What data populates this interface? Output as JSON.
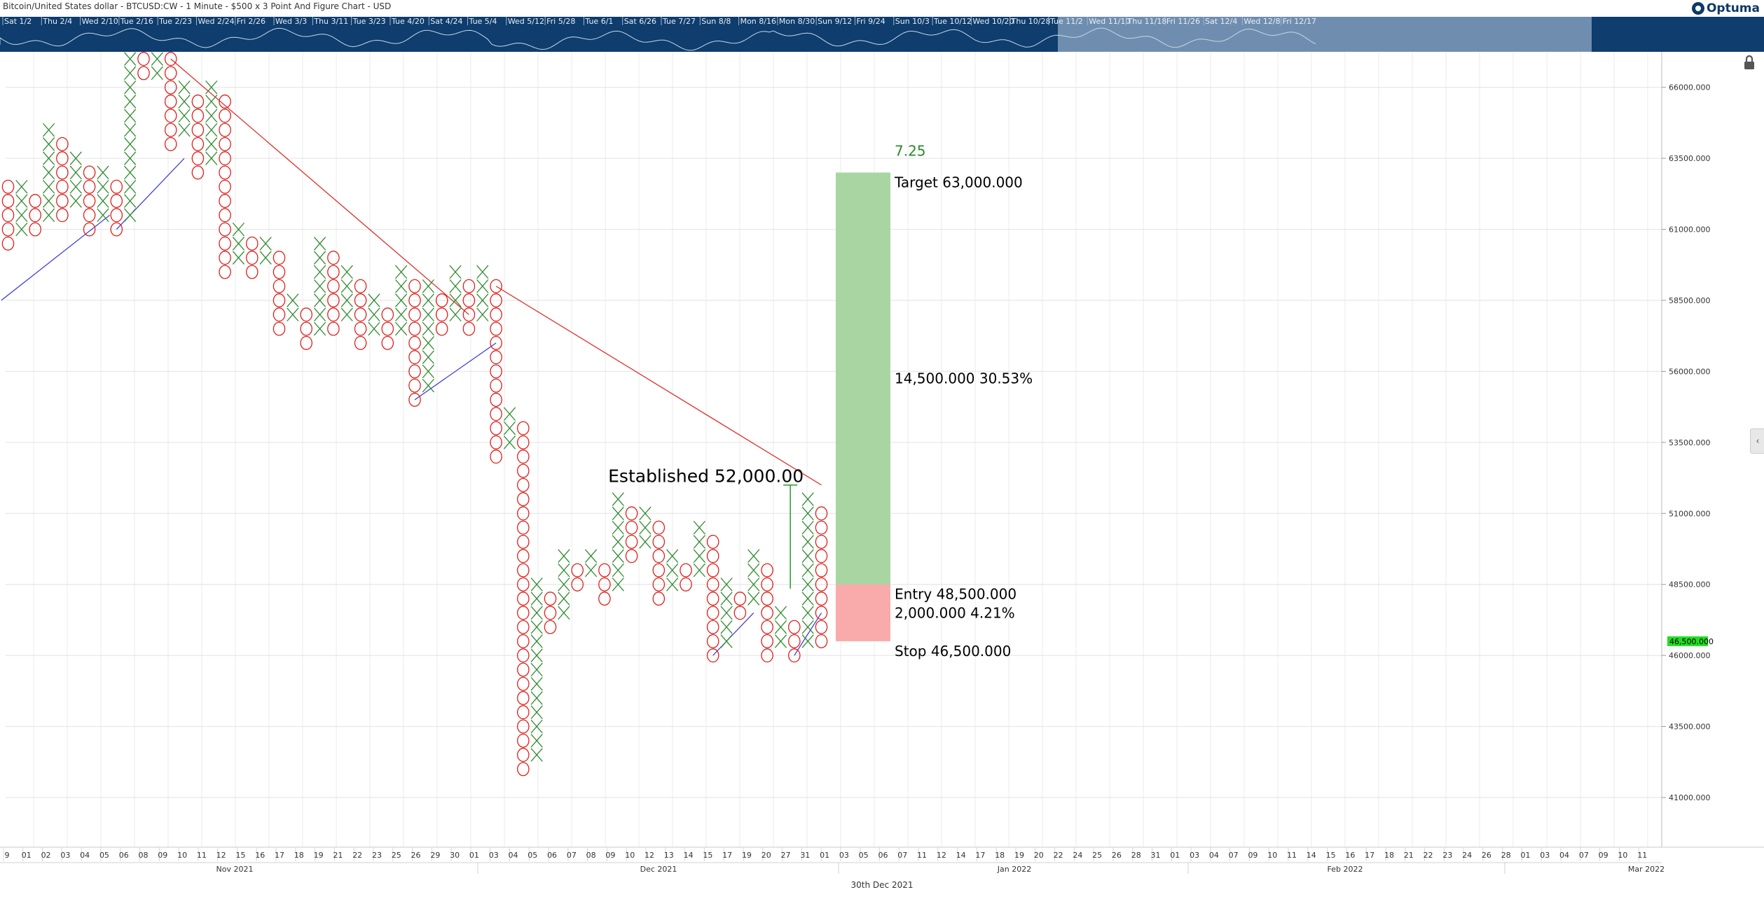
{
  "header": {
    "title": "Bitcoin/United States dollar - BTCUSD:CW - 1 Minute - $500 x 3 Point And Figure Chart - USD",
    "logo_text": "Optuma"
  },
  "navigator": {
    "labels": [
      "Sat 1/2",
      "Thu 2/4",
      "Wed 2/10",
      "Tue 2/16",
      "Tue 2/23",
      "Wed 2/24",
      "Fri 2/26",
      "Wed 3/3",
      "Thu 3/11",
      "Tue 3/23",
      "Tue 4/20",
      "Sat 4/24",
      "Tue 5/4",
      "Wed 5/12",
      "Fri 5/28",
      "Tue 6/1",
      "Sat 6/26",
      "Tue 7/27",
      "Sun 8/8",
      "Mon 8/16",
      "Mon 8/30",
      "Sun 9/12",
      "Fri 9/24",
      "Sun 10/3",
      "Tue 10/12",
      "Wed 10/20",
      "Thu 10/28",
      "Tue 11/2",
      "Wed 11/10",
      "Thu 11/18",
      "Fri 11/26",
      "Sat 12/4",
      "Wed 12/8",
      "Fri 12/17"
    ],
    "background_color": "#0e3d6e",
    "window_color": "#7a97b6"
  },
  "current_price_label": "46,500.000",
  "footer_date": "30th Dec 2021",
  "icons": {
    "lock": "lock-icon",
    "collapse": "chevron-left-icon"
  },
  "colors": {
    "x": "#2e8b2e",
    "o": "#e0201b",
    "target_zone": "#a9d5a3",
    "stop_zone": "#f9aaaa",
    "target_text": "#2a8a2a",
    "price_tag": "#22dd22",
    "support": "#3333dd",
    "resistance": "#e0201b"
  },
  "chart_data": {
    "type": "point_and_figure",
    "box_size": 500,
    "reversal": 3,
    "ylim": [
      39250,
      67250
    ],
    "y_ticks": [
      {
        "v": 66000,
        "label": "66000.000"
      },
      {
        "v": 63500,
        "label": "63500.000"
      },
      {
        "v": 61000,
        "label": "61000.000"
      },
      {
        "v": 58500,
        "label": "58500.000"
      },
      {
        "v": 56000,
        "label": "56000.000"
      },
      {
        "v": 53500,
        "label": "53500.000"
      },
      {
        "v": 51000,
        "label": "51000.000"
      },
      {
        "v": 48500,
        "label": "48500.000"
      },
      {
        "v": 46000,
        "label": "46000.000"
      },
      {
        "v": 43500,
        "label": "43500.000"
      },
      {
        "v": 41000,
        "label": "41000.000"
      }
    ],
    "columns": [
      {
        "t": "o",
        "from": 62500,
        "to": 60500
      },
      {
        "t": "x",
        "from": 61000,
        "to": 62500
      },
      {
        "t": "o",
        "from": 62000,
        "to": 61000
      },
      {
        "t": "x",
        "from": 61500,
        "to": 64500
      },
      {
        "t": "o",
        "from": 64000,
        "to": 61500
      },
      {
        "t": "x",
        "from": 62000,
        "to": 63500
      },
      {
        "t": "o",
        "from": 63000,
        "to": 61000
      },
      {
        "t": "x",
        "from": 61500,
        "to": 63000
      },
      {
        "t": "o",
        "from": 62500,
        "to": 61000
      },
      {
        "t": "x",
        "from": 61500,
        "to": 67000
      },
      {
        "t": "o",
        "from": 67000,
        "to": 66500
      },
      {
        "t": "x",
        "from": 66500,
        "to": 67000
      },
      {
        "t": "o",
        "from": 67000,
        "to": 64000
      },
      {
        "t": "x",
        "from": 64500,
        "to": 66000
      },
      {
        "t": "o",
        "from": 65500,
        "to": 63000
      },
      {
        "t": "x",
        "from": 63500,
        "to": 66000
      },
      {
        "t": "o",
        "from": 65500,
        "to": 59500
      },
      {
        "t": "x",
        "from": 60000,
        "to": 61000
      },
      {
        "t": "o",
        "from": 60500,
        "to": 59500
      },
      {
        "t": "x",
        "from": 60000,
        "to": 60500
      },
      {
        "t": "o",
        "from": 60000,
        "to": 57500
      },
      {
        "t": "x",
        "from": 58000,
        "to": 58500
      },
      {
        "t": "o",
        "from": 58000,
        "to": 57000
      },
      {
        "t": "x",
        "from": 57500,
        "to": 60500
      },
      {
        "t": "o",
        "from": 60000,
        "to": 57500
      },
      {
        "t": "x",
        "from": 58000,
        "to": 59500
      },
      {
        "t": "o",
        "from": 59000,
        "to": 57000
      },
      {
        "t": "x",
        "from": 57500,
        "to": 58500
      },
      {
        "t": "o",
        "from": 58000,
        "to": 57000
      },
      {
        "t": "x",
        "from": 57500,
        "to": 59500
      },
      {
        "t": "o",
        "from": 59000,
        "to": 55000
      },
      {
        "t": "x",
        "from": 55500,
        "to": 59000
      },
      {
        "t": "o",
        "from": 58500,
        "to": 57500
      },
      {
        "t": "x",
        "from": 58000,
        "to": 59500
      },
      {
        "t": "o",
        "from": 59000,
        "to": 57500
      },
      {
        "t": "x",
        "from": 58000,
        "to": 59500
      },
      {
        "t": "o",
        "from": 59000,
        "to": 53000
      },
      {
        "t": "x",
        "from": 53500,
        "to": 54500
      },
      {
        "t": "o",
        "from": 54000,
        "to": 42000
      },
      {
        "t": "x",
        "from": 42500,
        "to": 48500
      },
      {
        "t": "o",
        "from": 48000,
        "to": 47000
      },
      {
        "t": "x",
        "from": 47500,
        "to": 49500
      },
      {
        "t": "o",
        "from": 49000,
        "to": 48500
      },
      {
        "t": "x",
        "from": 49000,
        "to": 49500
      },
      {
        "t": "o",
        "from": 49000,
        "to": 48000
      },
      {
        "t": "x",
        "from": 48500,
        "to": 51500
      },
      {
        "t": "o",
        "from": 51000,
        "to": 49500
      },
      {
        "t": "x",
        "from": 50000,
        "to": 51000
      },
      {
        "t": "o",
        "from": 50500,
        "to": 48000
      },
      {
        "t": "x",
        "from": 48500,
        "to": 49500
      },
      {
        "t": "o",
        "from": 49000,
        "to": 48500
      },
      {
        "t": "x",
        "from": 49000,
        "to": 50500
      },
      {
        "t": "o",
        "from": 50000,
        "to": 46000
      },
      {
        "t": "x",
        "from": 46500,
        "to": 48500
      },
      {
        "t": "o",
        "from": 48000,
        "to": 47500
      },
      {
        "t": "x",
        "from": 48000,
        "to": 49500
      },
      {
        "t": "o",
        "from": 49000,
        "to": 46000
      },
      {
        "t": "x",
        "from": 46500,
        "to": 47500
      },
      {
        "t": "o",
        "from": 47000,
        "to": 46000
      },
      {
        "t": "x",
        "from": 46500,
        "to": 51500
      },
      {
        "t": "o",
        "from": 51000,
        "to": 46500
      }
    ],
    "trendlines": [
      {
        "kind": "resistance",
        "from": [
          12,
          67000
        ],
        "to": [
          34,
          58000
        ]
      },
      {
        "kind": "resistance",
        "from": [
          36,
          59000
        ],
        "to": [
          60,
          52000
        ]
      },
      {
        "kind": "support",
        "from": [
          -0.5,
          58500
        ],
        "to": [
          7.5,
          61500
        ]
      },
      {
        "kind": "support",
        "from": [
          8,
          61000
        ],
        "to": [
          13,
          63500
        ]
      },
      {
        "kind": "support",
        "from": [
          30,
          55000
        ],
        "to": [
          36,
          57000
        ]
      },
      {
        "kind": "support",
        "from": [
          52,
          46000
        ],
        "to": [
          55,
          47500
        ]
      },
      {
        "kind": "support",
        "from": [
          58,
          46000
        ],
        "to": [
          60,
          47500
        ]
      }
    ],
    "established": {
      "text": "Established 52,000.00",
      "price": 52000,
      "col": 57.5
    },
    "position": {
      "target": 63000,
      "entry": 48500,
      "stop": 46500,
      "target_label": "Target   63,000.000",
      "entry_label": "Entry   48,500.000",
      "stop_label": "Stop   46,500.000",
      "reward_label": "14,500.000   30.53%",
      "risk_label": "2,000.000   4.21%",
      "ratio_label": "7.25"
    },
    "x_tick_labels": [
      "9",
      "01",
      "02",
      "03",
      "04",
      "05",
      "06",
      "08",
      "09",
      "10",
      "11",
      "12",
      "15",
      "16",
      "17",
      "18",
      "19",
      "21",
      "22",
      "23",
      "25",
      "26",
      "29",
      "30",
      "01",
      "03",
      "04",
      "05",
      "06",
      "07",
      "08",
      "09",
      "10",
      "12",
      "13",
      "14",
      "15",
      "17",
      "19",
      "20",
      "27",
      "31",
      "01",
      "03",
      "05",
      "06",
      "07",
      "11",
      "12",
      "14",
      "17",
      "18",
      "19",
      "20",
      "22",
      "24",
      "25",
      "26",
      "28",
      "31",
      "01",
      "03",
      "04",
      "07",
      "09",
      "10",
      "11",
      "14",
      "15",
      "16",
      "17",
      "18",
      "21",
      "22",
      "23",
      "24",
      "26",
      "28",
      "01",
      "03",
      "04",
      "07",
      "09",
      "10",
      "11"
    ],
    "x_month_labels": [
      "Nov 2021",
      "Dec 2021",
      "Jan 2022",
      "Feb 2022",
      "Mar 2022"
    ]
  }
}
